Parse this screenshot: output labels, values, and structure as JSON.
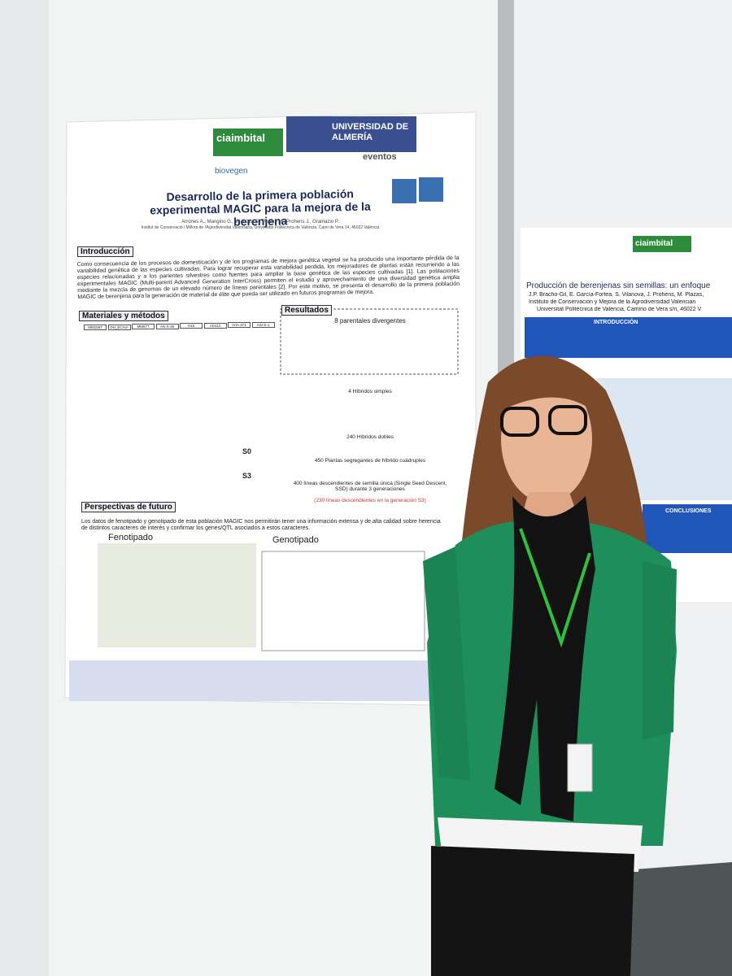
{
  "poster": {
    "logos": [
      "ciaimbital",
      "UNIVERSIDAD DE ALMERÍA",
      "biovegen",
      "eventos"
    ],
    "title": "Desarrollo de la primera población experimental MAGIC para la mejora de la berenjena",
    "authors": "Arrones A., Mangino G., Vilanova S., Plazas M., Prohens J., Gramazio P.",
    "affiliation": "Institut de Conservació i Millora de l'Agrodiversitat Valenciana, Universitat Politècnica de València, Camí de Vera 14, 46022 València",
    "sections": [
      "Introducción",
      "Materiales y métodos",
      "Resultados",
      "Perspectivas de futuro"
    ],
    "intro": "Como consecuencia de los procesos de domesticación y de los programas de mejora genética vegetal se ha producido una importante pérdida de la variabilidad genética de las especies cultivadas. Para lograr recuperar esta variabilidad perdida, los mejoradores de plantas están recurriendo a las especies relacionadas y a los parientes silvestres como fuentes para ampliar la base genética de las especies cultivadas [1]. Las poblaciones experimentales MAGIC (Multi-parent Advanced Generation InterCross) permiten el estudio y aprovechamiento de una diversidad genética amplia mediante la mezcla de genomas de un elevado número de líneas parentales [2]. Por este motivo, se presenta el desarrollo de la primera población MAGIC de berenjena para la generación de material de élite que pueda ser utilizado en futuros programas de mejora.",
    "parents": [
      "MM1597",
      "DH_ECAVI",
      "MM577",
      "AN-S-26",
      "H15",
      "A0413",
      "IVIA-371",
      "ASI-S-1"
    ],
    "flow": [
      "8 parentales divergentes",
      "4 Híbridos simples",
      "240 Híbridos dobles",
      "450 Plantas segregantes de híbrido cuádruples",
      "400 líneas descendientes de semilla única (Single Seed Descent, SSD) durante 3 generaciones",
      "(230 líneas descendientes en la generación S3)"
    ],
    "generations": [
      "S0",
      "S3"
    ],
    "future": "Los datos de fenotipado y genotipado de esta población MAGIC nos permitirán tener una información extensa y de alta calidad sobre herencia de distintos caracteres de interés y confirmar los genes/QTL asociados a estos caracteres.",
    "subheadings": [
      "Fenotipado",
      "Genotipado"
    ]
  },
  "right_poster": {
    "title": "Producción de berenjenas sin semillas: un enfoque",
    "authors": "J.P. Bracho-Gil, E. García-Fortea, S. Vilanova, J. Prohens, M. Plazas,",
    "affiliation": "Instituto de Conservación y Mejora de la Agrodiversidad Valencian",
    "address": "Universitat Politècnica de València, Camino de Vera s/n, 46022 V",
    "headings": [
      "INTRODUCCIÓN",
      "CONCLUSIONES"
    ],
    "logo": "ciaimbital"
  }
}
